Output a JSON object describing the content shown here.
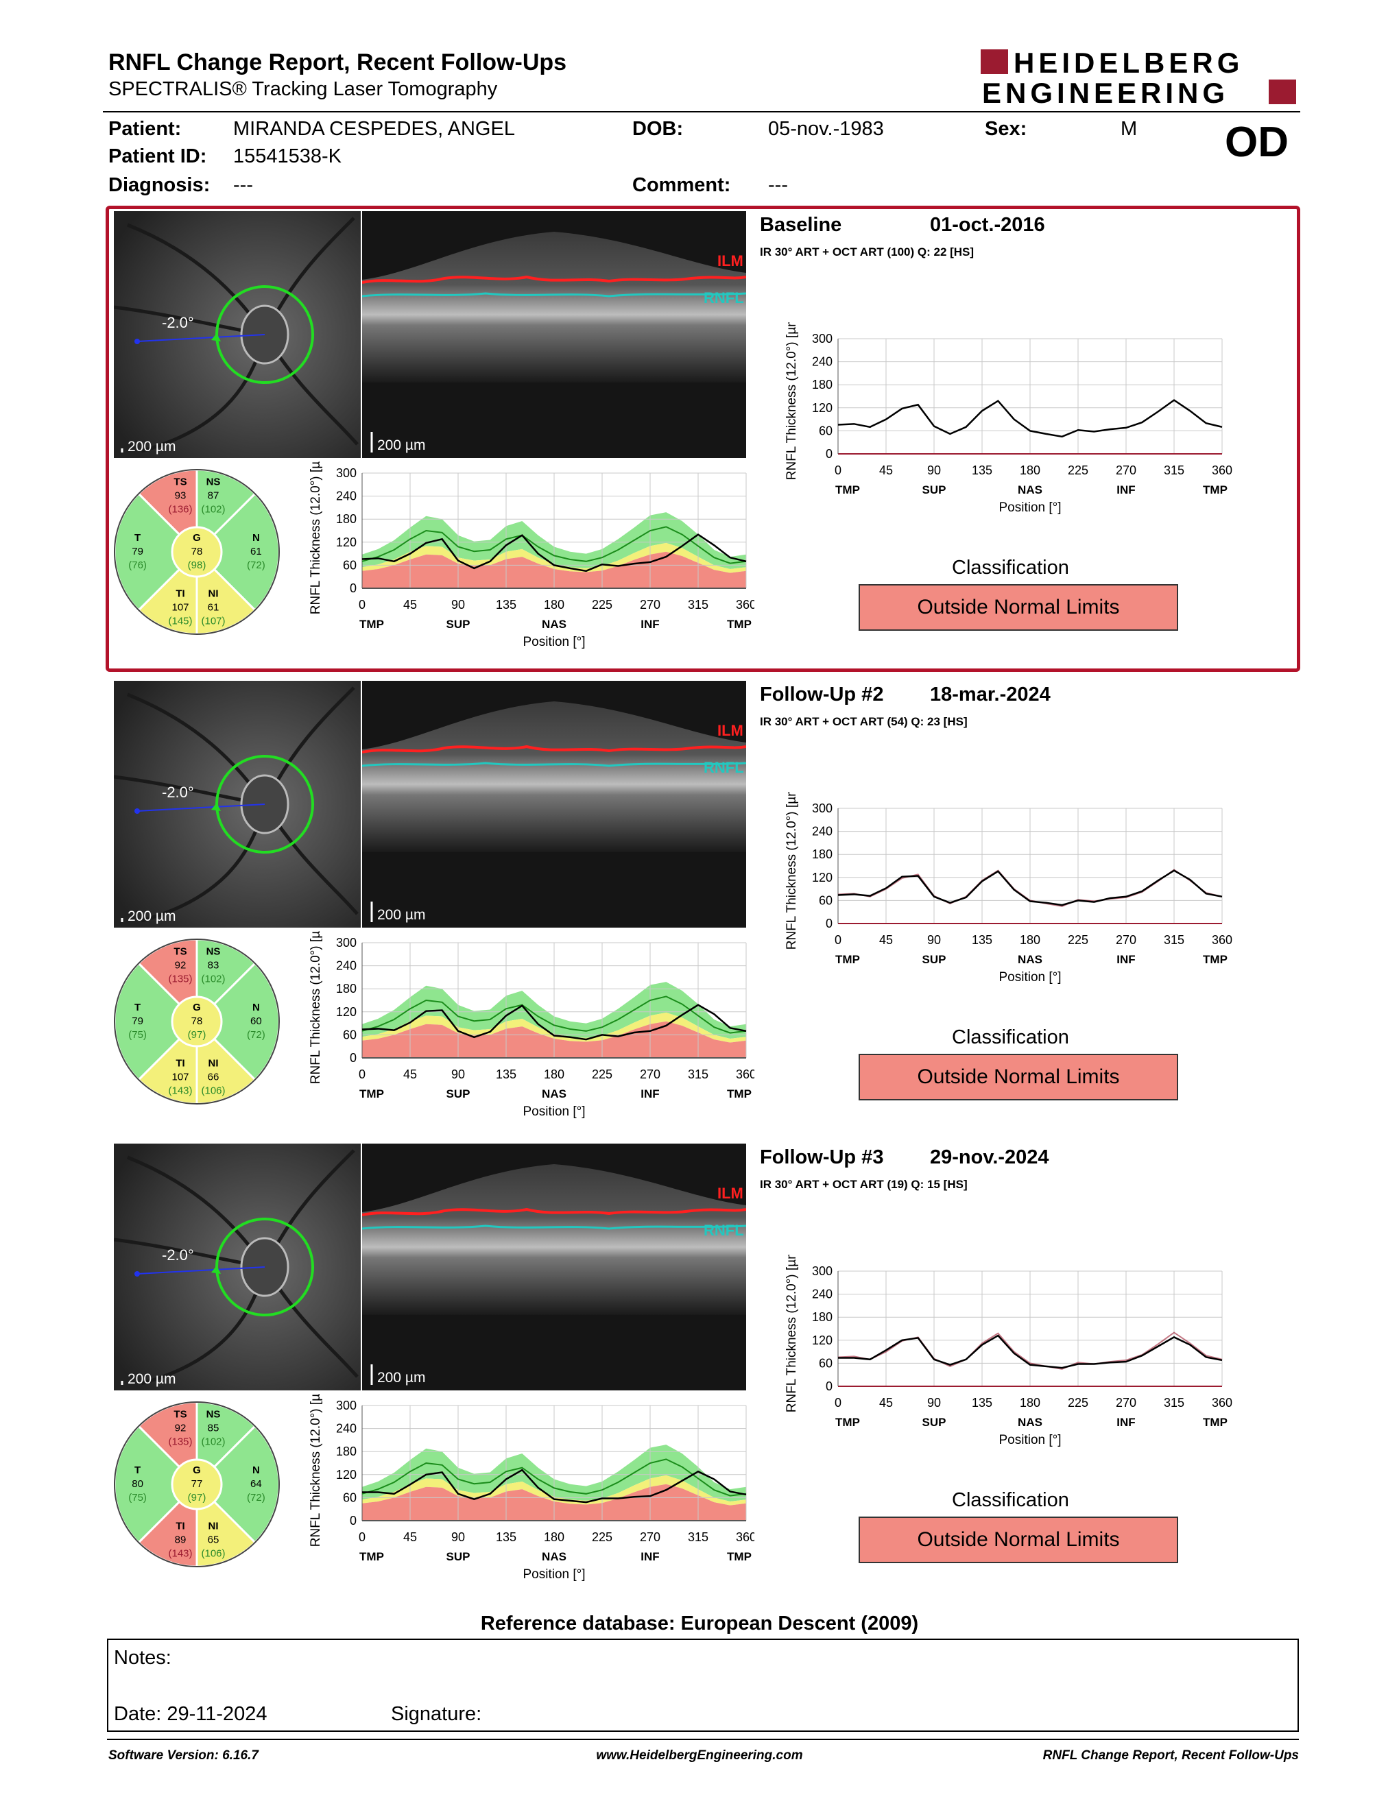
{
  "header": {
    "title": "RNFL Change Report, Recent Follow-Ups",
    "subtitle": "SPECTRALIS® Tracking Laser Tomography",
    "logo_line1": "HEIDELBERG",
    "logo_line2": "ENGINEERING",
    "brand_color": "#9b1b30"
  },
  "patient": {
    "patient_label": "Patient:",
    "patient_name": "MIRANDA CESPEDES, ANGEL",
    "dob_label": "DOB:",
    "dob": "05-nov.-1983",
    "sex_label": "Sex:",
    "sex": "M",
    "id_label": "Patient ID:",
    "patient_id": "15541538-K",
    "diagnosis_label": "Diagnosis:",
    "diagnosis": "---",
    "comment_label": "Comment:",
    "comment": "---",
    "eye": "OD"
  },
  "visits": [
    {
      "title": "Baseline",
      "date": "01-oct.-2016",
      "acquisition": "IR 30° ART + OCT ART (100) Q: 22 [HS]",
      "angle": "-2.0°",
      "scale": "200 µm",
      "ilm": "ILM",
      "rnfl": "RNFL",
      "classification_title": "Classification",
      "classification": "Outside Normal Limits",
      "sectors": {
        "TS": {
          "label": "TS",
          "value": "93",
          "ref": "(136)"
        },
        "NS": {
          "label": "NS",
          "value": "87",
          "ref": "(102)"
        },
        "T": {
          "label": "T",
          "value": "79",
          "ref": "(76)"
        },
        "G": {
          "label": "G",
          "value": "78",
          "ref": "(98)"
        },
        "N": {
          "label": "N",
          "value": "61",
          "ref": "(72)"
        },
        "TI": {
          "label": "TI",
          "value": "107",
          "ref": "(145)"
        },
        "NI": {
          "label": "NI",
          "value": "61",
          "ref": "(107)"
        }
      }
    },
    {
      "title": "Follow-Up #2",
      "date": "18-mar.-2024",
      "acquisition": "IR 30° ART + OCT ART (54) Q: 23 [HS]",
      "angle": "-2.0°",
      "scale": "200 µm",
      "ilm": "ILM",
      "rnfl": "RNFL",
      "classification_title": "Classification",
      "classification": "Outside Normal Limits",
      "sectors": {
        "TS": {
          "label": "TS",
          "value": "92",
          "ref": "(135)"
        },
        "NS": {
          "label": "NS",
          "value": "83",
          "ref": "(102)"
        },
        "T": {
          "label": "T",
          "value": "79",
          "ref": "(75)"
        },
        "G": {
          "label": "G",
          "value": "78",
          "ref": "(97)"
        },
        "N": {
          "label": "N",
          "value": "60",
          "ref": "(72)"
        },
        "TI": {
          "label": "TI",
          "value": "107",
          "ref": "(143)"
        },
        "NI": {
          "label": "NI",
          "value": "66",
          "ref": "(106)"
        }
      }
    },
    {
      "title": "Follow-Up #3",
      "date": "29-nov.-2024",
      "acquisition": "IR 30° ART + OCT ART (19) Q: 15 [HS]",
      "angle": "-2.0°",
      "scale": "200 µm",
      "ilm": "ILM",
      "rnfl": "RNFL",
      "classification_title": "Classification",
      "classification": "Outside Normal Limits",
      "sectors": {
        "TS": {
          "label": "TS",
          "value": "92",
          "ref": "(135)"
        },
        "NS": {
          "label": "NS",
          "value": "85",
          "ref": "(102)"
        },
        "T": {
          "label": "T",
          "value": "80",
          "ref": "(75)"
        },
        "G": {
          "label": "G",
          "value": "77",
          "ref": "(97)"
        },
        "N": {
          "label": "N",
          "value": "64",
          "ref": "(72)"
        },
        "TI": {
          "label": "TI",
          "value": "89",
          "ref": "(143)"
        },
        "NI": {
          "label": "NI",
          "value": "65",
          "ref": "(106)"
        }
      }
    }
  ],
  "chart_data": {
    "type": "line",
    "ylabel": "RNFL Thickness (12.0°) [µm]",
    "xlabel": "Position [°]",
    "ylim": [
      0,
      300
    ],
    "yticks": [
      0,
      60,
      120,
      180,
      240,
      300
    ],
    "xticks": [
      0,
      45,
      90,
      135,
      180,
      225,
      270,
      315,
      360
    ],
    "xsub": [
      "TMP",
      "SUP",
      "NAS",
      "INF",
      "TMP"
    ],
    "xsub_positions": [
      0,
      90,
      180,
      270,
      360
    ],
    "positions": [
      0,
      15,
      30,
      45,
      60,
      75,
      90,
      105,
      120,
      135,
      150,
      165,
      180,
      195,
      210,
      225,
      240,
      255,
      270,
      285,
      300,
      315,
      330,
      345,
      360
    ],
    "baseline_profile": [
      76,
      78,
      70,
      90,
      118,
      128,
      72,
      52,
      70,
      112,
      138,
      90,
      60,
      52,
      45,
      62,
      58,
      64,
      68,
      82,
      110,
      140,
      112,
      80,
      70
    ],
    "followup2_profile": [
      74,
      76,
      72,
      92,
      122,
      124,
      70,
      54,
      68,
      110,
      136,
      88,
      58,
      54,
      48,
      60,
      56,
      66,
      70,
      84,
      112,
      138,
      114,
      78,
      70
    ],
    "followup3_profile": [
      74,
      74,
      70,
      94,
      120,
      126,
      70,
      56,
      70,
      108,
      132,
      86,
      56,
      52,
      48,
      58,
      58,
      62,
      64,
      80,
      104,
      128,
      108,
      76,
      68
    ],
    "normal_mean": [
      70,
      82,
      100,
      128,
      150,
      145,
      108,
      96,
      100,
      128,
      138,
      108,
      85,
      75,
      70,
      80,
      100,
      125,
      150,
      160,
      140,
      110,
      80,
      65,
      70
    ],
    "normal_upper": [
      88,
      102,
      125,
      158,
      188,
      180,
      138,
      122,
      126,
      162,
      175,
      138,
      108,
      95,
      90,
      102,
      128,
      158,
      190,
      198,
      175,
      140,
      100,
      82,
      88
    ],
    "normal_borderline": [
      55,
      62,
      75,
      95,
      110,
      108,
      80,
      72,
      75,
      95,
      102,
      80,
      62,
      55,
      52,
      58,
      72,
      92,
      110,
      118,
      105,
      82,
      60,
      50,
      55
    ],
    "normal_lower": [
      45,
      50,
      60,
      75,
      88,
      86,
      64,
      58,
      60,
      76,
      82,
      64,
      50,
      44,
      42,
      46,
      58,
      74,
      88,
      95,
      84,
      66,
      48,
      40,
      45
    ]
  },
  "footer": {
    "reference_db": "Reference database: European Descent (2009)",
    "notes_label": "Notes:",
    "date_label": "Date: 29-11-2024",
    "signature_label": "Signature:",
    "software": "Software Version: 6.16.7",
    "website": "www.HeidelbergEngineering.com",
    "report_name": "RNFL Change Report, Recent Follow-Ups"
  }
}
